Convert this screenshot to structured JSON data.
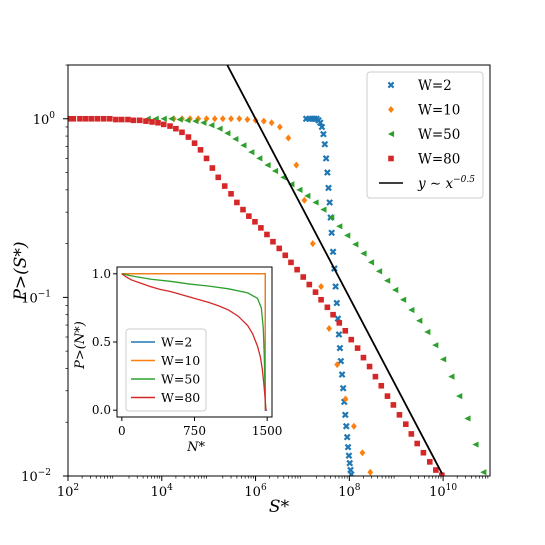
{
  "chart_data": [
    {
      "type": "scatter",
      "title": "",
      "xlabel": "S*",
      "ylabel": "P>(S*)",
      "x_scale": "log",
      "y_scale": "log",
      "xlim": [
        100,
        100000000000.0
      ],
      "ylim": [
        0.01,
        2
      ],
      "grid": false,
      "legend_placement": "top-right",
      "x_ticks": [
        {
          "value": 100,
          "base": "10",
          "exp": "2"
        },
        {
          "value": 10000,
          "base": "10",
          "exp": "4"
        },
        {
          "value": 1000000,
          "base": "10",
          "exp": "6"
        },
        {
          "value": 100000000,
          "base": "10",
          "exp": "8"
        },
        {
          "value": 10000000000,
          "base": "10",
          "exp": "10"
        }
      ],
      "y_ticks": [
        {
          "value": 1,
          "base": "10",
          "exp": "0"
        },
        {
          "value": 0.1,
          "base": "10",
          "exp": "−1"
        },
        {
          "value": 0.01,
          "base": "10",
          "exp": "−2"
        }
      ],
      "series": [
        {
          "name": "W=2",
          "marker": "x",
          "color": "#1f77b4",
          "x": [
            12000000.0,
            14000000.0,
            16000000.0,
            18000000.0,
            20000000.0,
            22000000.0,
            24000000.0,
            26000000.0,
            28000000.0,
            30000000.0,
            32000000.0,
            34000000.0,
            36000000.0,
            38000000.0,
            40000000.0,
            42000000.0,
            45000000.0,
            48000000.0,
            51000000.0,
            54000000.0,
            57000000.0,
            60000000.0,
            63000000.0,
            66000000.0,
            70000000.0,
            74000000.0,
            78000000.0,
            82000000.0,
            86000000.0,
            90000000.0,
            94000000.0,
            98000000.0,
            102000000.0,
            106000000.0,
            110000000.0
          ],
          "y": [
            1.0,
            1.0,
            1.0,
            1.0,
            1.0,
            0.98,
            0.95,
            0.9,
            0.82,
            0.72,
            0.6,
            0.5,
            0.41,
            0.34,
            0.28,
            0.23,
            0.18,
            0.145,
            0.115,
            0.093,
            0.076,
            0.062,
            0.052,
            0.044,
            0.037,
            0.031,
            0.026,
            0.022,
            0.019,
            0.0165,
            0.0145,
            0.013,
            0.0118,
            0.0108,
            0.0102
          ]
        },
        {
          "name": "W=10",
          "marker": "D",
          "color": "#ff7f0e",
          "x": [
            18000.0,
            27000.0,
            40000.0,
            60000.0,
            90000.0,
            135000.0,
            200000.0,
            300000.0,
            450000.0,
            670000.0,
            1000000.0,
            1500000.0,
            2200000.0,
            3300000.0,
            5000000.0,
            7400000.0,
            11000000.0,
            16600000.0,
            25000000.0,
            37000000.0,
            55000000.0,
            83000000.0,
            125000000.0,
            190000000.0,
            280000000.0
          ],
          "y": [
            1.0,
            1.0,
            1.0,
            1.0,
            1.0,
            1.0,
            1.0,
            1.0,
            1.0,
            0.99,
            0.98,
            0.97,
            0.95,
            0.9,
            0.78,
            0.55,
            0.35,
            0.2,
            0.115,
            0.067,
            0.042,
            0.027,
            0.019,
            0.0135,
            0.0105
          ]
        },
        {
          "name": "W=50",
          "marker": "<",
          "color": "#2ca02c",
          "x": [
            5000.0,
            7400.0,
            11000.0,
            16000.0,
            24000.0,
            35000.0,
            52000.0,
            77000.0,
            114000.0,
            170000.0,
            250000.0,
            370000.0,
            550000.0,
            810000.0,
            1200000.0,
            1800000.0,
            2600000.0,
            3900000.0,
            5800000.0,
            8600000.0,
            12700000.0,
            19000000.0,
            28000000.0,
            41000000.0,
            61000000.0,
            90000000.0,
            134000000.0,
            200000000.0,
            290000000.0,
            430000000.0,
            640000000.0,
            950000000.0,
            1400000000.0,
            2100000000.0,
            3100000000.0,
            4600000000.0,
            6800000000.0,
            10000000000.0,
            15000000000.0,
            22000000000.0,
            33000000000.0,
            49000000000.0,
            72000000000.0
          ],
          "y": [
            1.0,
            1.0,
            1.0,
            1.0,
            0.99,
            0.98,
            0.97,
            0.95,
            0.92,
            0.88,
            0.83,
            0.77,
            0.71,
            0.65,
            0.6,
            0.55,
            0.51,
            0.47,
            0.43,
            0.4,
            0.37,
            0.34,
            0.31,
            0.28,
            0.25,
            0.222,
            0.198,
            0.176,
            0.157,
            0.14,
            0.124,
            0.11,
            0.097,
            0.085,
            0.074,
            0.064,
            0.054,
            0.045,
            0.036,
            0.028,
            0.021,
            0.015,
            0.0105
          ]
        },
        {
          "name": "W=80",
          "marker": "s",
          "color": "#d62728",
          "x": [
            100.0,
            130.0,
            180.0,
            240.0,
            320.0,
            430.0,
            580.0,
            780.0,
            1050.0,
            1400.0,
            1900.0,
            2500.0,
            3400.0,
            4600.0,
            6200.0,
            8300.0,
            11000.0,
            15000.0,
            20000.0,
            27000.0,
            37000.0,
            50000.0,
            67000.0,
            90000.0,
            120000.0,
            160000.0,
            220000.0,
            300000.0,
            400000.0,
            540000.0,
            720000.0,
            970000.0,
            1300000.0,
            1750000.0,
            2350000.0,
            3200000.0,
            4300000.0,
            5700000.0,
            7700000.0,
            10400000.0,
            14000000.0,
            19000000.0,
            25000000.0,
            34000000.0,
            45000000.0,
            61000000.0,
            82000000.0,
            110000000.0,
            150000000.0,
            200000000.0,
            270000000.0,
            360000000.0,
            480000000.0,
            650000000.0,
            870000000.0,
            1170000000.0,
            1600000000.0,
            2100000000.0,
            2800000000.0,
            3800000000.0,
            5200000000.0,
            7000000000.0,
            9400000000.0
          ],
          "y": [
            1.0,
            1.0,
            1.0,
            1.0,
            1.0,
            1.0,
            1.0,
            1.0,
            0.99,
            0.99,
            0.99,
            0.98,
            0.98,
            0.97,
            0.96,
            0.95,
            0.93,
            0.91,
            0.88,
            0.84,
            0.79,
            0.73,
            0.67,
            0.6,
            0.53,
            0.47,
            0.42,
            0.38,
            0.34,
            0.31,
            0.285,
            0.265,
            0.245,
            0.225,
            0.205,
            0.188,
            0.172,
            0.157,
            0.143,
            0.13,
            0.118,
            0.107,
            0.097,
            0.088,
            0.08,
            0.072,
            0.065,
            0.058,
            0.052,
            0.046,
            0.041,
            0.036,
            0.032,
            0.028,
            0.025,
            0.022,
            0.0195,
            0.0172,
            0.0152,
            0.0135,
            0.012,
            0.0108,
            0.0101
          ]
        },
        {
          "name": "y ∼ x^−0.5",
          "legend_base": "y ∼ x",
          "legend_exp": "−0.5",
          "marker": "line",
          "color": "#000000",
          "x": [
            185000.0,
            9500000000.0
          ],
          "y": [
            2.32,
            0.0103
          ]
        }
      ]
    },
    {
      "type": "line",
      "title": "",
      "xlabel": "N*",
      "ylabel": "P>(N*)",
      "xlim": [
        -50,
        1550
      ],
      "ylim": [
        -0.05,
        1.05
      ],
      "x_ticks": [
        0,
        750,
        1500
      ],
      "x_tick_labels": [
        "0",
        "750",
        "1500"
      ],
      "y_ticks": [
        0.0,
        0.5,
        1.0
      ],
      "y_tick_labels": [
        "0.0",
        "0.5",
        "1.0"
      ],
      "grid": false,
      "legend_placement": "lower-left",
      "series": [
        {
          "name": "W=2",
          "color": "#1f77b4",
          "x": [
            0,
            1480,
            1480,
            1500
          ],
          "y": [
            1.0,
            1.0,
            0.0,
            0.0
          ]
        },
        {
          "name": "W=10",
          "color": "#ff7f0e",
          "x": [
            0,
            1480,
            1481
          ],
          "y": [
            1.0,
            1.0,
            0.0
          ]
        },
        {
          "name": "W=50",
          "color": "#2ca02c",
          "x": [
            0,
            100,
            300,
            500,
            700,
            900,
            1100,
            1300,
            1400,
            1440,
            1460,
            1470,
            1478,
            1485
          ],
          "y": [
            1.0,
            0.985,
            0.96,
            0.945,
            0.925,
            0.91,
            0.89,
            0.86,
            0.82,
            0.75,
            0.6,
            0.4,
            0.15,
            0.0
          ]
        },
        {
          "name": "W=80",
          "color": "#d62728",
          "x": [
            0,
            50,
            100,
            200,
            300,
            400,
            500,
            600,
            700,
            800,
            900,
            1000,
            1100,
            1200,
            1300,
            1350,
            1400,
            1430,
            1450,
            1465,
            1475,
            1482,
            1488
          ],
          "y": [
            1.0,
            0.975,
            0.955,
            0.93,
            0.905,
            0.885,
            0.87,
            0.85,
            0.83,
            0.81,
            0.79,
            0.765,
            0.735,
            0.69,
            0.62,
            0.56,
            0.47,
            0.39,
            0.3,
            0.2,
            0.12,
            0.05,
            0.0
          ]
        }
      ]
    }
  ]
}
